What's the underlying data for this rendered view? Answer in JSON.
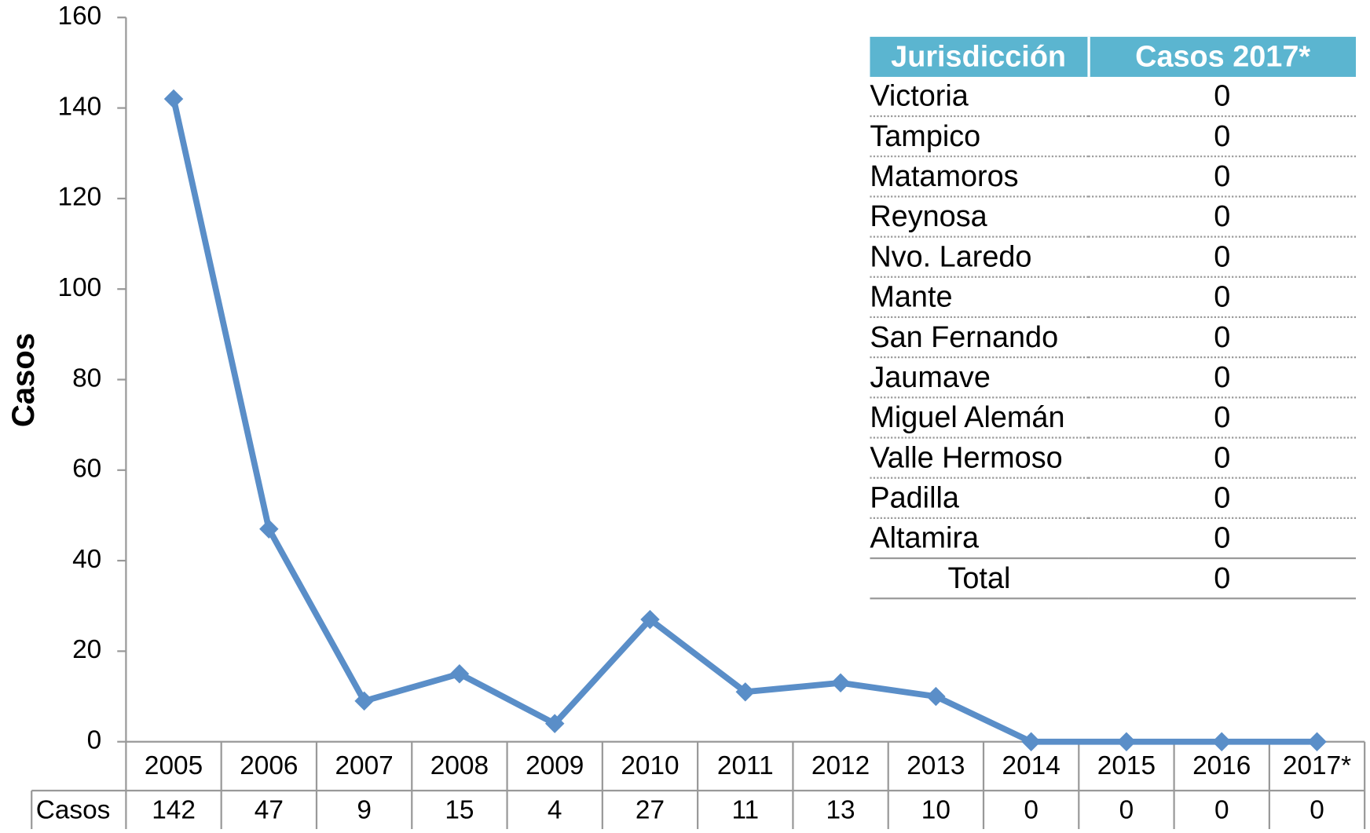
{
  "chart_data": {
    "type": "line",
    "y_label": "Casos",
    "categories": [
      "2005",
      "2006",
      "2007",
      "2008",
      "2009",
      "2010",
      "2011",
      "2012",
      "2013",
      "2014",
      "2015",
      "2016",
      "2017*"
    ],
    "series": [
      {
        "name": "Casos",
        "color": "#5a8ec8",
        "values": [
          142,
          47,
          9,
          15,
          4,
          27,
          11,
          13,
          10,
          0,
          0,
          0,
          0
        ]
      }
    ],
    "ylim": [
      0,
      160
    ],
    "yticks": [
      0,
      20,
      40,
      60,
      80,
      100,
      120,
      140,
      160
    ]
  },
  "table": {
    "columns": [
      "Jurisdicción",
      "Casos 2017*"
    ],
    "rows": [
      [
        "Victoria",
        0
      ],
      [
        "Tampico",
        0
      ],
      [
        "Matamoros",
        0
      ],
      [
        "Reynosa",
        0
      ],
      [
        "Nvo. Laredo",
        0
      ],
      [
        "Mante",
        0
      ],
      [
        "San Fernando",
        0
      ],
      [
        "Jaumave",
        0
      ],
      [
        "Miguel Alemán",
        0
      ],
      [
        "Valle Hermoso",
        0
      ],
      [
        "Padilla",
        0
      ],
      [
        "Altamira",
        0
      ],
      [
        "Total",
        0
      ]
    ]
  }
}
